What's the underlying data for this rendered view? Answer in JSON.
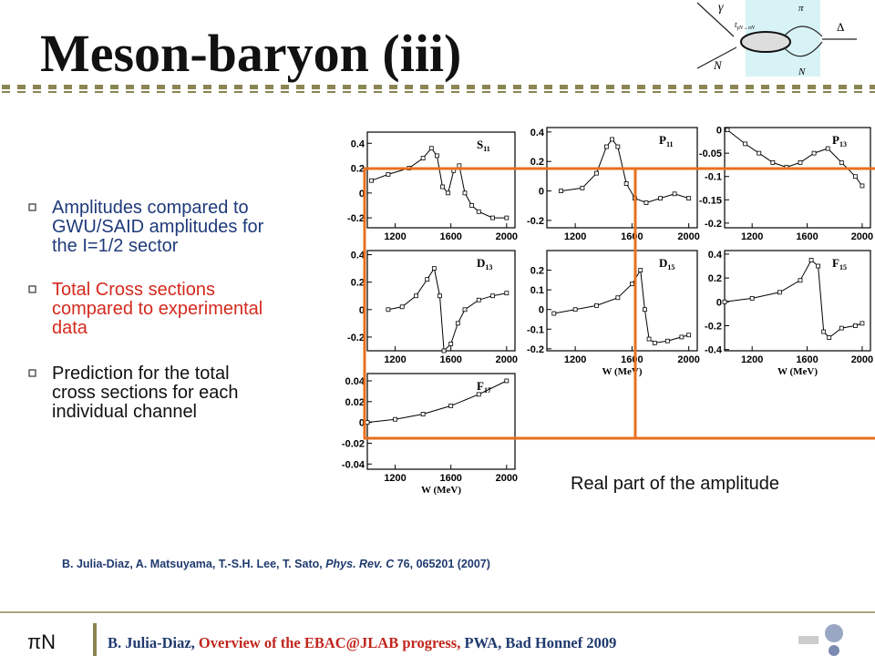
{
  "slide": {
    "title": "Meson-baryon (iii)",
    "diagram": {
      "gamma": "γ",
      "pi": "π",
      "delta": "Δ",
      "n_in": "N",
      "n_out": "N",
      "vertex": "t",
      "vertex_sub": "γN→πN"
    },
    "bullets": [
      {
        "lines": [
          "Amplitudes compared to",
          "GWU/SAID amplitudes for",
          "the I=1/2 sector"
        ]
      },
      {
        "lines": [
          "Total Cross sections",
          "compared to experimental",
          "data"
        ]
      },
      {
        "lines": [
          "Prediction for the total",
          "cross sections for each",
          "individual channel"
        ]
      }
    ],
    "caption": "Real part of the amplitude",
    "reference": {
      "authors": "B. Julia-Diaz, A. Matsuyama, T.-S.H. Lee, T. Sato, ",
      "journal": "Phys. Rev. C",
      "rest": " 76, 065201 (2007)"
    },
    "footer": {
      "logo": "πN",
      "author": "B. Julia-Diaz, ",
      "talk": "Overview of the EBAC@JLAB progress,",
      "venue": " PWA, Bad Honnef 2009"
    }
  },
  "chart_data": [
    {
      "type": "line",
      "label": "S",
      "label_sub": "11",
      "xlim": [
        1000,
        2060
      ],
      "xticks": [
        1200,
        1600,
        2000
      ],
      "ylim": [
        -0.28,
        0.49
      ],
      "yticks": [
        0.4,
        0.2,
        0,
        -0.2
      ],
      "x": [
        1030,
        1150,
        1300,
        1400,
        1460,
        1500,
        1540,
        1580,
        1620,
        1660,
        1700,
        1750,
        1800,
        1900,
        2000
      ],
      "values": [
        0.1,
        0.15,
        0.2,
        0.28,
        0.36,
        0.3,
        0.05,
        0.0,
        0.18,
        0.22,
        0.0,
        -0.1,
        -0.15,
        -0.2,
        -0.2
      ]
    },
    {
      "type": "line",
      "label": "P",
      "label_sub": "11",
      "xlim": [
        1000,
        2060
      ],
      "xticks": [
        1200,
        1600,
        2000
      ],
      "ylim": [
        -0.25,
        0.43
      ],
      "yticks": [
        0.4,
        0.2,
        0,
        -0.2
      ],
      "x": [
        1100,
        1250,
        1350,
        1420,
        1460,
        1500,
        1560,
        1620,
        1700,
        1800,
        1900,
        2000
      ],
      "values": [
        0.0,
        0.02,
        0.12,
        0.3,
        0.35,
        0.3,
        0.05,
        -0.05,
        -0.08,
        -0.05,
        -0.02,
        -0.05
      ]
    },
    {
      "type": "line",
      "label": "P",
      "label_sub": "13",
      "xlim": [
        1000,
        2060
      ],
      "xticks": [
        1200,
        1600,
        2000
      ],
      "ylim": [
        -0.21,
        0.005
      ],
      "yticks": [
        0,
        -0.05,
        -0.1,
        -0.15,
        -0.2
      ],
      "x": [
        1020,
        1150,
        1250,
        1350,
        1450,
        1550,
        1650,
        1750,
        1850,
        1950,
        2000
      ],
      "values": [
        0.0,
        -0.03,
        -0.05,
        -0.07,
        -0.08,
        -0.07,
        -0.05,
        -0.04,
        -0.07,
        -0.1,
        -0.12
      ]
    },
    {
      "type": "line",
      "label": "D",
      "label_sub": "13",
      "xlim": [
        1000,
        2060
      ],
      "xticks": [
        1200,
        1600,
        2000
      ],
      "ylim": [
        -0.3,
        0.43
      ],
      "yticks": [
        0.4,
        0.2,
        0,
        -0.2
      ],
      "x": [
        1150,
        1250,
        1350,
        1430,
        1480,
        1520,
        1550,
        1600,
        1650,
        1700,
        1800,
        1900,
        2000
      ],
      "values": [
        0.0,
        0.02,
        0.1,
        0.22,
        0.3,
        0.1,
        -0.3,
        -0.25,
        -0.1,
        0.0,
        0.07,
        0.1,
        0.12
      ]
    },
    {
      "type": "line",
      "label": "D",
      "label_sub": "15",
      "xlim": [
        1000,
        2060
      ],
      "xticks": [
        1200,
        1600,
        2000
      ],
      "ylim": [
        -0.21,
        0.3
      ],
      "yticks": [
        0.2,
        0.1,
        0,
        -0.1,
        -0.2
      ],
      "xlabel": "W (MeV)",
      "x": [
        1050,
        1200,
        1350,
        1500,
        1600,
        1660,
        1690,
        1720,
        1760,
        1850,
        1950,
        2000
      ],
      "values": [
        -0.02,
        0.0,
        0.02,
        0.06,
        0.13,
        0.2,
        0.0,
        -0.15,
        -0.17,
        -0.16,
        -0.14,
        -0.13
      ]
    },
    {
      "type": "line",
      "label": "F",
      "label_sub": "15",
      "xlim": [
        1000,
        2060
      ],
      "xticks": [
        1200,
        1600,
        2000
      ],
      "ylim": [
        -0.41,
        0.43
      ],
      "yticks": [
        0.4,
        0.2,
        0,
        -0.2,
        -0.4
      ],
      "xlabel": "W (MeV)",
      "x": [
        1000,
        1200,
        1400,
        1550,
        1630,
        1680,
        1720,
        1760,
        1850,
        1950,
        2000
      ],
      "values": [
        0.0,
        0.03,
        0.08,
        0.18,
        0.35,
        0.3,
        -0.25,
        -0.3,
        -0.22,
        -0.2,
        -0.18
      ]
    },
    {
      "type": "line",
      "label": "F",
      "label_sub": "17",
      "xlim": [
        1000,
        2060
      ],
      "xticks": [
        1200,
        1600,
        2000
      ],
      "ylim": [
        -0.045,
        0.047
      ],
      "yticks": [
        0.04,
        0.02,
        0,
        -0.02,
        -0.04
      ],
      "xlabel": "W (MeV)",
      "x": [
        1000,
        1200,
        1400,
        1600,
        1800,
        2000
      ],
      "values": [
        0.0,
        0.003,
        0.008,
        0.016,
        0.027,
        0.04
      ]
    }
  ]
}
